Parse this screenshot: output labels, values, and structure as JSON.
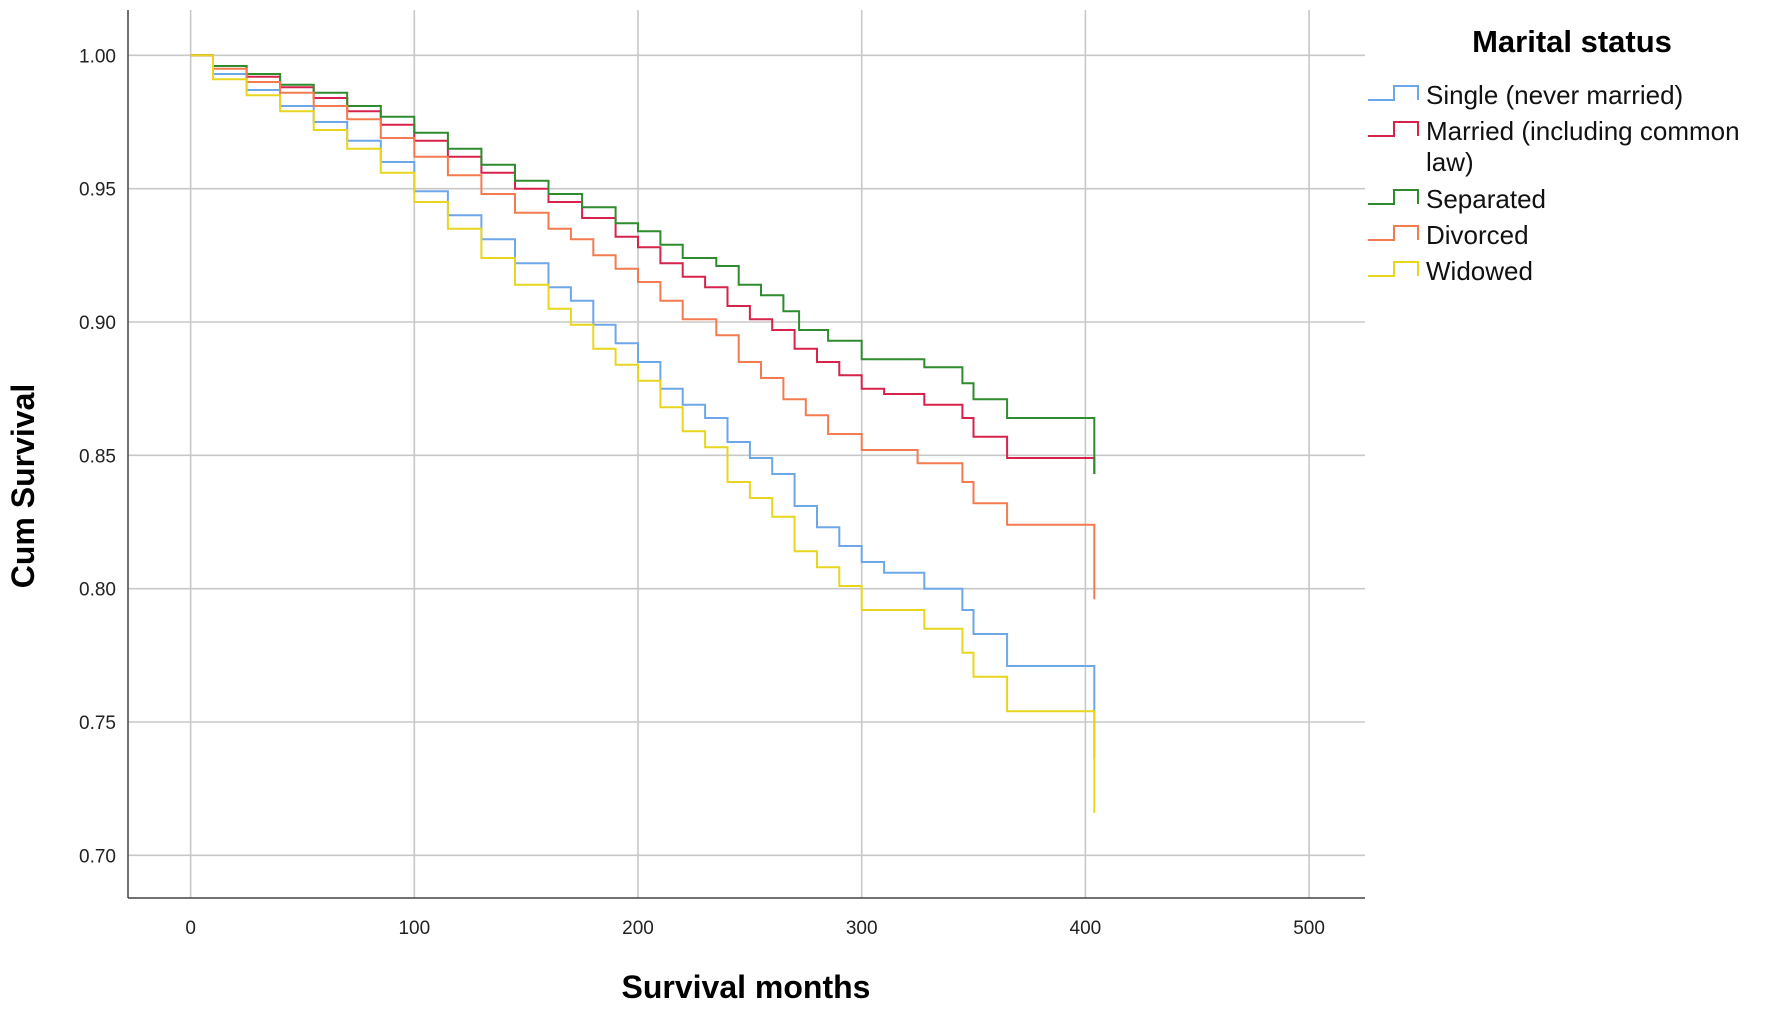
{
  "chart_data": {
    "type": "line",
    "step": true,
    "xlabel": "Survival months",
    "ylabel": "Cum Survival",
    "xlim": [
      -28,
      525
    ],
    "ylim": [
      0.684,
      1.017
    ],
    "xticks": [
      0,
      100,
      200,
      300,
      400,
      500
    ],
    "xtick_labels": [
      "0",
      "100",
      "200",
      "300",
      "400",
      "500"
    ],
    "yticks": [
      0.7,
      0.75,
      0.8,
      0.85,
      0.9,
      0.95,
      1.0
    ],
    "ytick_labels": [
      "0.70",
      "0.75",
      "0.80",
      "0.85",
      "0.90",
      "0.95",
      "1.00"
    ],
    "grid": true,
    "legend": {
      "title": "Marital status",
      "position": "top-right",
      "entries": [
        [
          "Single (never married)"
        ],
        [
          "Married (including common",
          "law)"
        ],
        [
          "Separated"
        ],
        [
          "Divorced"
        ],
        [
          "Widowed"
        ]
      ]
    },
    "series": [
      {
        "name": "Single (never married)",
        "color": "#6ea7e8",
        "x": [
          0,
          10,
          25,
          40,
          55,
          70,
          85,
          100,
          115,
          130,
          145,
          160,
          170,
          180,
          190,
          200,
          210,
          220,
          230,
          240,
          250,
          260,
          270,
          280,
          290,
          300,
          310,
          328,
          345,
          350,
          365,
          380,
          403,
          404
        ],
        "y": [
          1.0,
          0.993,
          0.987,
          0.981,
          0.975,
          0.968,
          0.96,
          0.949,
          0.94,
          0.931,
          0.922,
          0.913,
          0.908,
          0.899,
          0.892,
          0.885,
          0.875,
          0.869,
          0.864,
          0.855,
          0.849,
          0.843,
          0.831,
          0.823,
          0.816,
          0.81,
          0.806,
          0.8,
          0.792,
          0.783,
          0.771,
          0.771,
          0.771,
          0.737
        ]
      },
      {
        "name": "Married (including common law)",
        "color": "#d6234c",
        "x": [
          0,
          10,
          25,
          40,
          55,
          70,
          85,
          100,
          115,
          130,
          145,
          160,
          175,
          190,
          200,
          210,
          220,
          230,
          240,
          250,
          260,
          270,
          280,
          290,
          300,
          310,
          328,
          345,
          350,
          365,
          380,
          403,
          404
        ],
        "y": [
          1.0,
          0.996,
          0.992,
          0.988,
          0.984,
          0.979,
          0.974,
          0.968,
          0.962,
          0.956,
          0.95,
          0.945,
          0.939,
          0.932,
          0.928,
          0.922,
          0.917,
          0.913,
          0.906,
          0.901,
          0.897,
          0.89,
          0.885,
          0.88,
          0.875,
          0.873,
          0.869,
          0.864,
          0.857,
          0.849,
          0.849,
          0.849,
          0.843
        ]
      },
      {
        "name": "Separated",
        "color": "#2e8b2e",
        "x": [
          0,
          10,
          25,
          40,
          55,
          70,
          85,
          100,
          115,
          130,
          145,
          160,
          175,
          190,
          200,
          210,
          220,
          235,
          245,
          255,
          265,
          272,
          285,
          300,
          328,
          345,
          350,
          365,
          380,
          403,
          404
        ],
        "y": [
          1.0,
          0.996,
          0.993,
          0.989,
          0.986,
          0.981,
          0.977,
          0.971,
          0.965,
          0.959,
          0.953,
          0.948,
          0.943,
          0.937,
          0.934,
          0.929,
          0.924,
          0.921,
          0.914,
          0.91,
          0.904,
          0.897,
          0.893,
          0.886,
          0.883,
          0.877,
          0.871,
          0.864,
          0.864,
          0.864,
          0.843
        ]
      },
      {
        "name": "Divorced",
        "color": "#f47a4f",
        "x": [
          0,
          10,
          25,
          40,
          55,
          70,
          85,
          100,
          115,
          130,
          145,
          160,
          170,
          180,
          190,
          200,
          210,
          220,
          235,
          245,
          255,
          265,
          275,
          285,
          300,
          325,
          345,
          350,
          365,
          380,
          403,
          404
        ],
        "y": [
          1.0,
          0.995,
          0.99,
          0.986,
          0.981,
          0.976,
          0.969,
          0.962,
          0.955,
          0.948,
          0.941,
          0.935,
          0.931,
          0.925,
          0.92,
          0.915,
          0.908,
          0.901,
          0.895,
          0.885,
          0.879,
          0.871,
          0.865,
          0.858,
          0.852,
          0.847,
          0.84,
          0.832,
          0.824,
          0.824,
          0.824,
          0.796
        ]
      },
      {
        "name": "Widowed",
        "color": "#e8d61e",
        "x": [
          0,
          10,
          25,
          40,
          55,
          70,
          85,
          100,
          115,
          130,
          145,
          160,
          170,
          180,
          190,
          200,
          210,
          220,
          230,
          240,
          250,
          260,
          270,
          280,
          290,
          300,
          328,
          345,
          350,
          365,
          380,
          403,
          404
        ],
        "y": [
          1.0,
          0.991,
          0.985,
          0.979,
          0.972,
          0.965,
          0.956,
          0.945,
          0.935,
          0.924,
          0.914,
          0.905,
          0.899,
          0.89,
          0.884,
          0.878,
          0.868,
          0.859,
          0.853,
          0.84,
          0.834,
          0.827,
          0.814,
          0.808,
          0.801,
          0.792,
          0.785,
          0.776,
          0.767,
          0.754,
          0.754,
          0.754,
          0.716
        ]
      }
    ]
  }
}
